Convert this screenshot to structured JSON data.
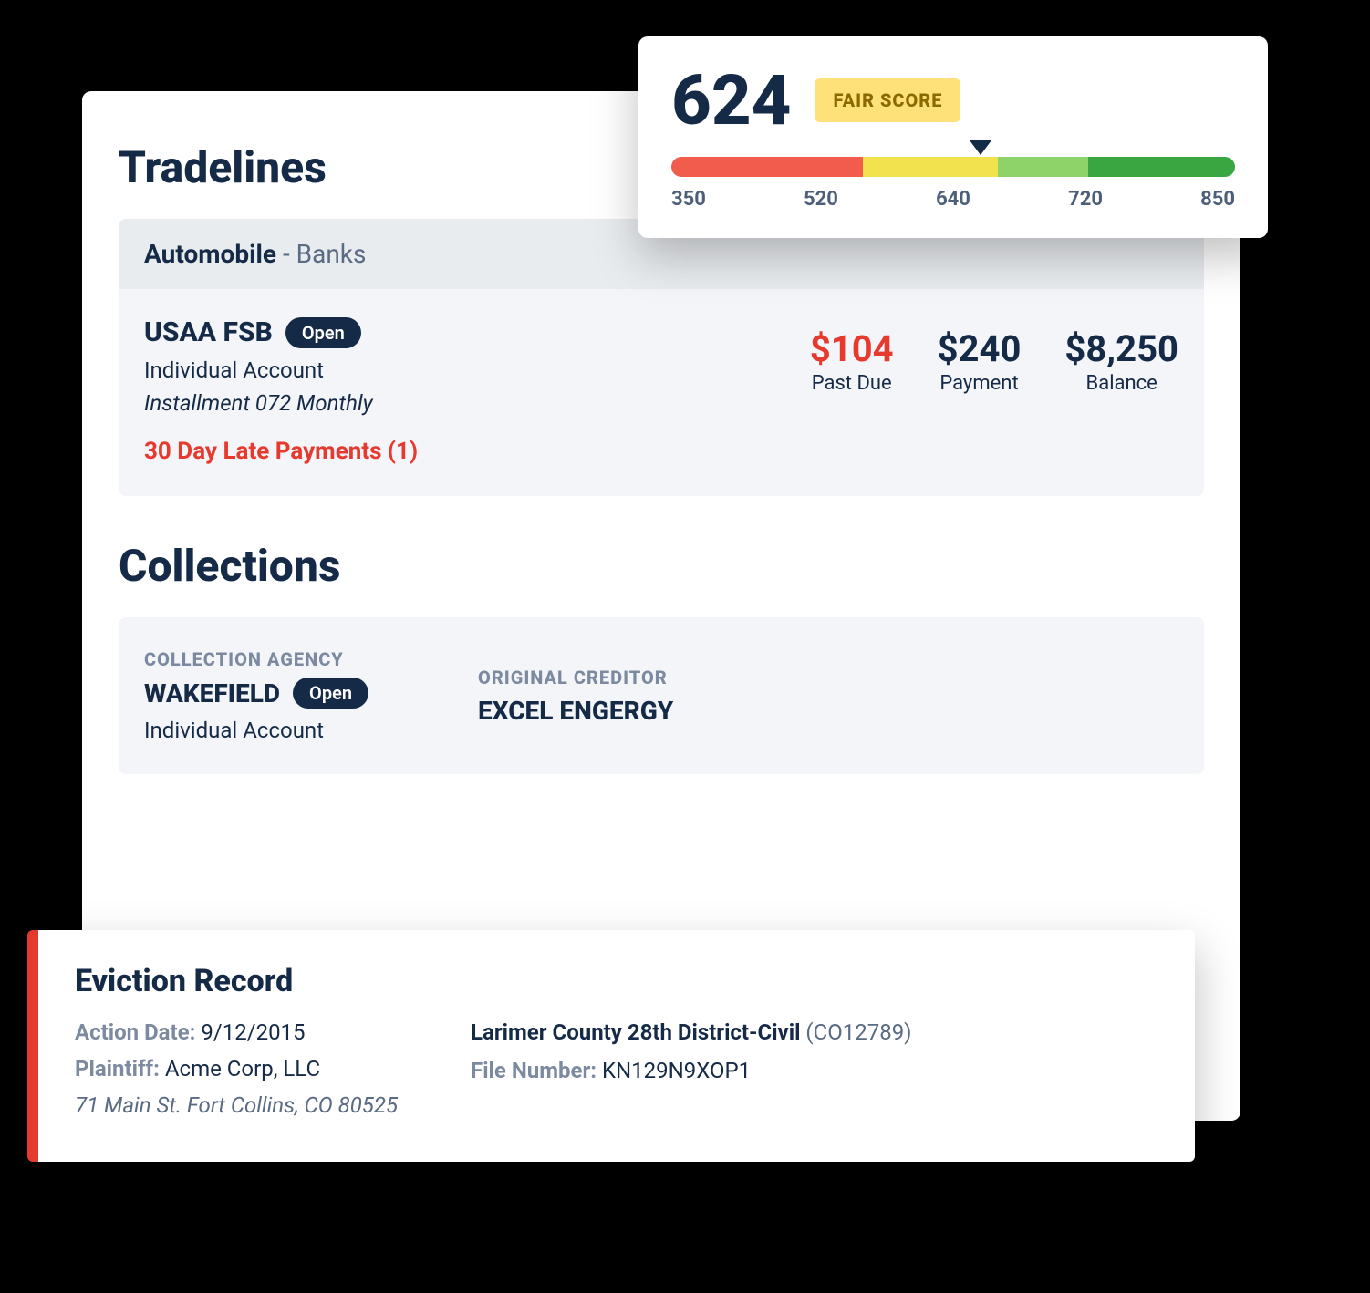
{
  "tradelines": {
    "title": "Tradelines",
    "category_bold": "Automobile",
    "category_light": " - Banks",
    "creditor": "USAA FSB",
    "status_badge": "Open",
    "account_type": "Individual Account",
    "installment": "Installment 072 Monthly",
    "late_text": "30 Day Late Payments (1)",
    "metrics": {
      "past_due": {
        "value": "$104",
        "label": "Past Due",
        "color": "#e63a2e"
      },
      "payment": {
        "value": "$240",
        "label": "Payment",
        "color": "#152a47"
      },
      "balance": {
        "value": "$8,250",
        "label": "Balance",
        "color": "#152a47"
      }
    }
  },
  "collections": {
    "title": "Collections",
    "agency_label": "COLLECTION AGENCY",
    "agency_name": "WAKEFIELD",
    "status_badge": "Open",
    "account_type": "Individual Account",
    "creditor_label": "ORIGINAL CREDITOR",
    "creditor_name": "EXCEL ENGERGY"
  },
  "score": {
    "value": "624",
    "badge": "FAIR SCORE",
    "badge_bg": "#ffe17a",
    "badge_fg": "#8a6a00",
    "range_min": 350,
    "range_max": 850,
    "marker_value": 624,
    "segments": [
      {
        "color": "#f25c4d",
        "from": 350,
        "to": 520
      },
      {
        "color": "#f2e24d",
        "from": 520,
        "to": 640
      },
      {
        "color": "#8dd36a",
        "from": 640,
        "to": 720
      },
      {
        "color": "#3aa642",
        "from": 720,
        "to": 850
      }
    ],
    "ticks": [
      "350",
      "520",
      "640",
      "720",
      "850"
    ]
  },
  "eviction": {
    "title": "Eviction Record",
    "accent_color": "#e63a2e",
    "action_date_label": "Action Date:",
    "action_date": "9/12/2015",
    "plaintiff_label": "Plaintiff:",
    "plaintiff": "Acme Corp, LLC",
    "address": "71 Main St. Fort Collins, CO 80525",
    "court": "Larimer County 28th District-Civil",
    "court_ref": "(CO12789)",
    "file_number_label": "File Number:",
    "file_number": "KN129N9XOP1"
  },
  "colors": {
    "text_primary": "#152a47",
    "text_muted": "#7b8aa0",
    "danger": "#e63a2e",
    "panel_bg": "#f3f5f8",
    "header_bg": "#e9ecef"
  }
}
